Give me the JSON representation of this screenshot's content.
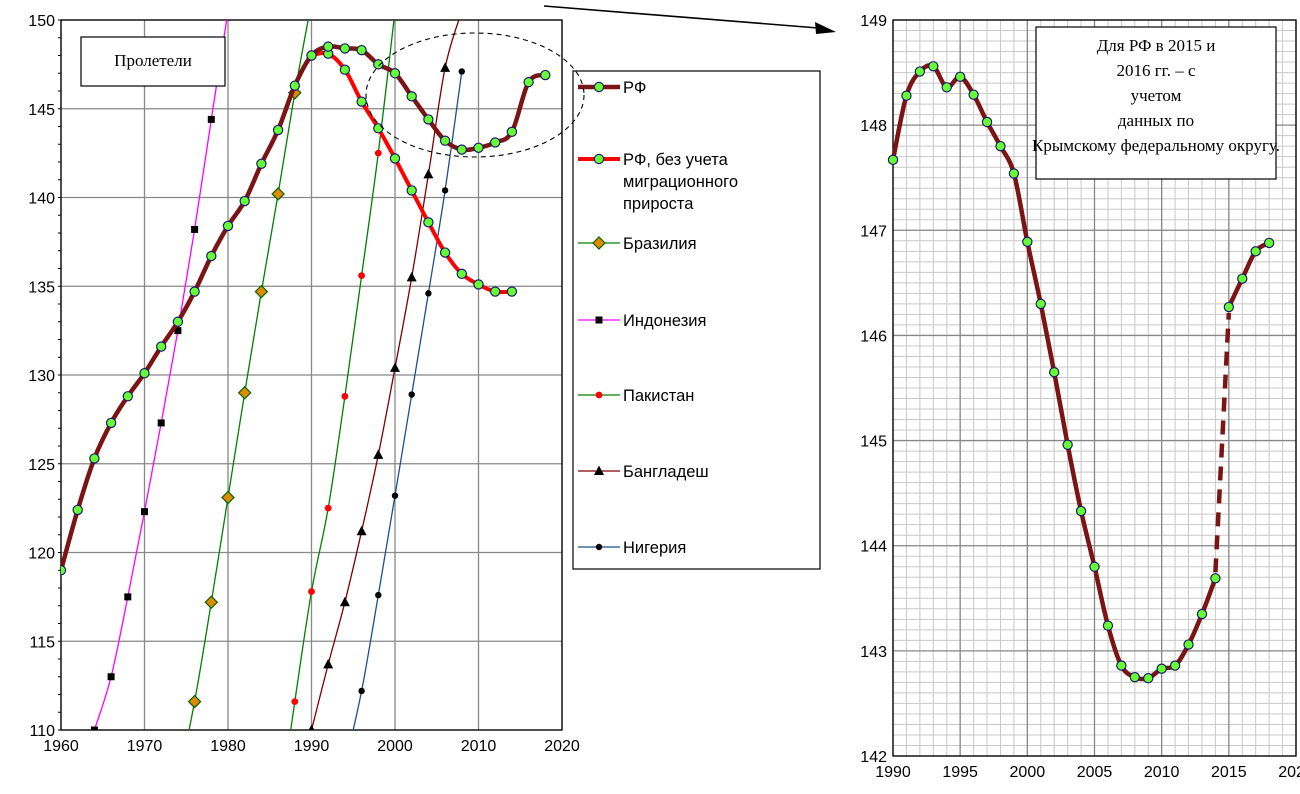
{
  "chart_data": [
    {
      "type": "line",
      "annotation": "Пролетели",
      "xlim": [
        1960,
        2020
      ],
      "ylim": [
        110,
        150
      ],
      "x_ticks": [
        "1960",
        "1970",
        "1980",
        "1990",
        "2000",
        "2010",
        "2020"
      ],
      "y_ticks": [
        "110",
        "115",
        "120",
        "125",
        "130",
        "135",
        "140",
        "145",
        "150"
      ],
      "grid": true,
      "legend_position": "right",
      "series": [
        {
          "name": "РФ",
          "color": "#7b1414",
          "marker": "circle-green",
          "x": [
            1960,
            1962,
            1964,
            1966,
            1968,
            1970,
            1972,
            1974,
            1976,
            1978,
            1980,
            1982,
            1984,
            1986,
            1988,
            1990,
            1992,
            1994,
            1996,
            1998,
            2000,
            2002,
            2004,
            2006,
            2008,
            2010,
            2012,
            2014,
            2016,
            2018
          ],
          "y": [
            119.0,
            122.4,
            125.3,
            127.3,
            128.8,
            130.1,
            131.6,
            133.0,
            134.7,
            136.7,
            138.4,
            139.8,
            141.9,
            143.8,
            146.3,
            148.0,
            148.5,
            148.4,
            148.3,
            147.5,
            147.0,
            145.7,
            144.4,
            143.2,
            142.7,
            142.8,
            143.1,
            143.7,
            146.5,
            146.9
          ]
        },
        {
          "name": "РФ, без учета миграционного прироста",
          "color": "#ff0000",
          "marker": "circle-green",
          "x": [
            1990,
            1992,
            1994,
            1996,
            1998,
            2000,
            2002,
            2004,
            2006,
            2008,
            2010,
            2012,
            2014
          ],
          "y": [
            148.0,
            148.1,
            147.2,
            145.4,
            143.9,
            142.2,
            140.4,
            138.6,
            136.9,
            135.7,
            135.1,
            134.7,
            134.7
          ]
        },
        {
          "name": "Бразилия",
          "color": "#008000",
          "marker": "diamond-orange",
          "x": [
            1974,
            1976,
            1978,
            1980,
            1982,
            1984,
            1986,
            1988,
            1990
          ],
          "y": [
            107.0,
            111.6,
            117.2,
            123.1,
            129.0,
            134.7,
            140.2,
            145.9,
            151.0
          ]
        },
        {
          "name": "Индонезия",
          "color": "#ff00ff",
          "marker": "square-black",
          "x": [
            1964,
            1966,
            1968,
            1970,
            1972,
            1974,
            1976,
            1978,
            1980
          ],
          "y": [
            110.0,
            113.0,
            117.5,
            122.3,
            127.3,
            132.5,
            138.2,
            144.4,
            150.5
          ]
        },
        {
          "name": "Пакистан",
          "color": "#008000",
          "marker": "dot-red",
          "x": [
            1986,
            1988,
            1990,
            1992,
            1994,
            1996,
            1998,
            2000
          ],
          "y": [
            105.0,
            111.6,
            117.8,
            122.5,
            128.8,
            135.6,
            142.5,
            150.5
          ]
        },
        {
          "name": "Бангладеш",
          "color": "#800000",
          "marker": "triangle-black",
          "x": [
            1990,
            1992,
            1994,
            1996,
            1998,
            2000,
            2002,
            2004,
            2006,
            2008
          ],
          "y": [
            110.0,
            113.7,
            117.2,
            121.2,
            125.5,
            130.4,
            135.5,
            141.3,
            147.3,
            150.5
          ]
        },
        {
          "name": "Нигерия",
          "color": "#1f4e8c",
          "marker": "dot-black",
          "x": [
            1994,
            1996,
            1998,
            2000,
            2002,
            2004,
            2006,
            2008
          ],
          "y": [
            108.0,
            112.2,
            117.6,
            123.2,
            128.9,
            134.6,
            140.4,
            147.1
          ]
        }
      ]
    },
    {
      "type": "line",
      "annotation": "Для РФ в 2015 и 2016 гг. – с учетом данных по Крымскому федеральному округу.",
      "xlim": [
        1990,
        2020
      ],
      "ylim": [
        142,
        149
      ],
      "x_ticks": [
        "1990",
        "1995",
        "2000",
        "2005",
        "2010",
        "2015",
        "2020"
      ],
      "y_ticks": [
        "142",
        "143",
        "144",
        "145",
        "146",
        "147",
        "148",
        "149"
      ],
      "grid": true,
      "series": [
        {
          "name": "РФ",
          "color": "#7b1414",
          "marker": "circle-green",
          "x": [
            1990,
            1991,
            1992,
            1993,
            1994,
            1995,
            1996,
            1997,
            1998,
            1999,
            2000,
            2001,
            2002,
            2003,
            2004,
            2005,
            2006,
            2007,
            2008,
            2009,
            2010,
            2011,
            2012,
            2013,
            2014,
            2015,
            2016,
            2017,
            2018
          ],
          "y": [
            147.67,
            148.28,
            148.51,
            148.56,
            148.36,
            148.46,
            148.29,
            148.03,
            147.8,
            147.54,
            146.89,
            146.3,
            145.65,
            144.96,
            144.33,
            143.8,
            143.24,
            142.86,
            142.75,
            142.74,
            142.83,
            142.86,
            143.06,
            143.35,
            143.69,
            146.27,
            146.54,
            146.8,
            146.88
          ]
        }
      ]
    }
  ]
}
